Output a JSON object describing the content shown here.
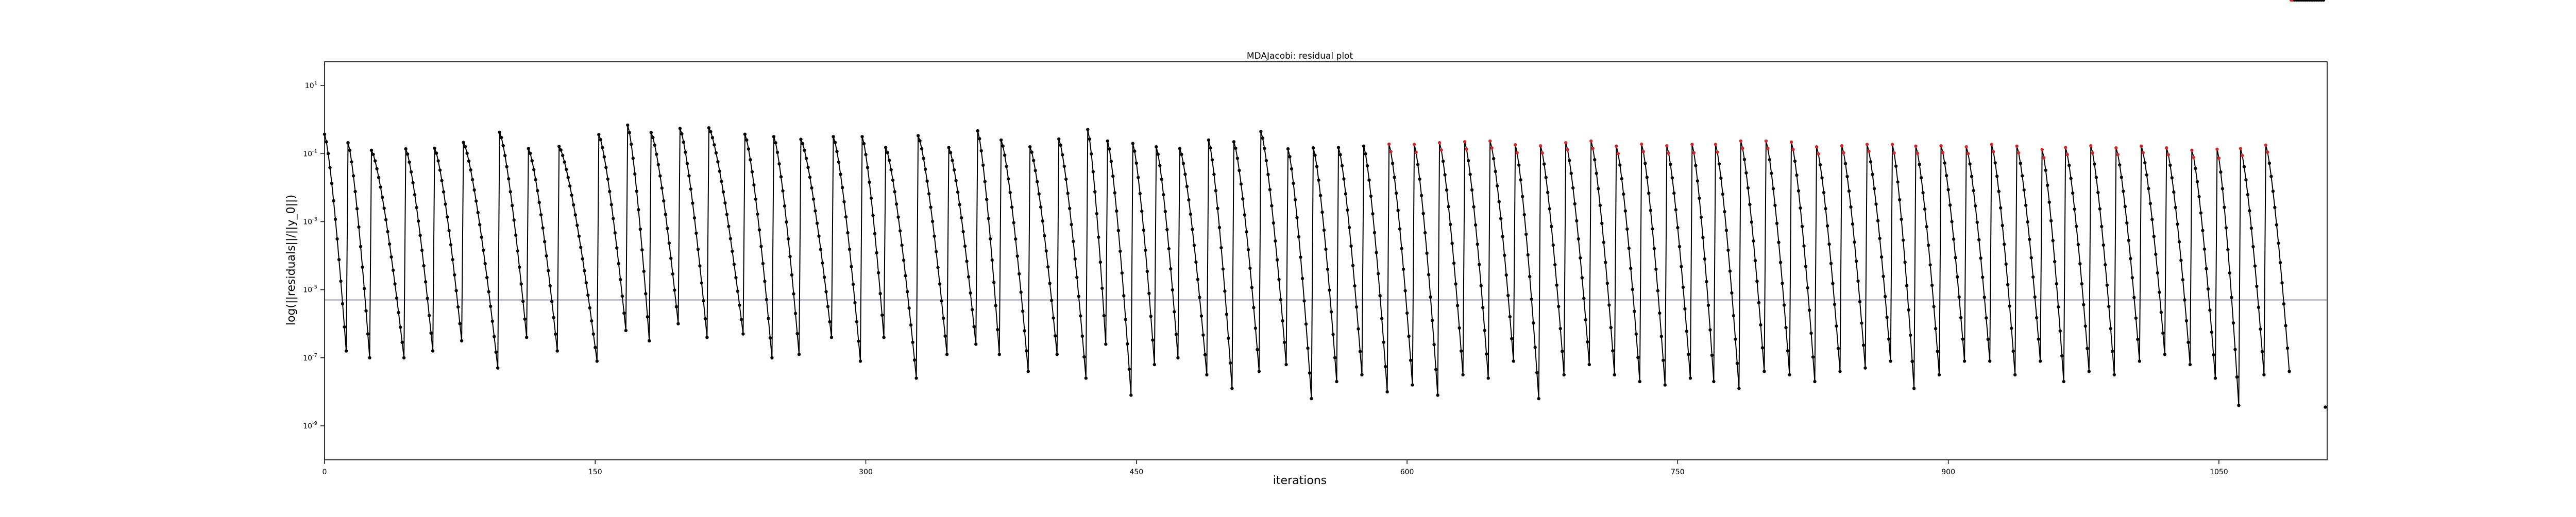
{
  "chart_data": {
    "type": "line",
    "title": "MDAJacobi: residual plot",
    "xlabel": "iterations",
    "ylabel": "log(||residuals||/||y_0||)",
    "xlim": [
      0,
      1110
    ],
    "ylim_exponent": [
      -10,
      1.7
    ],
    "yscale": "log",
    "x_ticks": [
      0,
      150,
      300,
      450,
      600,
      750,
      900,
      1050
    ],
    "x_tick_labels": [
      "0",
      "150",
      "300",
      "450",
      "600",
      "750",
      "900",
      "1050"
    ],
    "y_ticks_exponent": [
      1,
      -1,
      -3,
      -5,
      -7,
      -9
    ],
    "y_tick_labels": [
      "10^1",
      "10^-1",
      "10^-3",
      "10^-5",
      "10^-7",
      "10^-9"
    ],
    "tolerance_line_exponent": -5.3,
    "grid": false,
    "legend": "none",
    "line_color": "#000000",
    "marker_color": "#000000",
    "highlight_marker_color": "#d62728",
    "tolerance_color": "#8c8cb4",
    "series": [
      {
        "cycle_starts": [
          0,
          13,
          26,
          45,
          61,
          77,
          97,
          113,
          130,
          152,
          168,
          181,
          197,
          213,
          233,
          249,
          264,
          282,
          298,
          311,
          329,
          346,
          362,
          375,
          391,
          407,
          423,
          434,
          448,
          461,
          474,
          490,
          504,
          519,
          534,
          548,
          562,
          576,
          590,
          604,
          618,
          632,
          646,
          660,
          674,
          688,
          702,
          716,
          730,
          744,
          758,
          771,
          785,
          799,
          813,
          827,
          841,
          855,
          869,
          882,
          896,
          910,
          924,
          938,
          952,
          965,
          979,
          993,
          1007,
          1021,
          1035,
          1049,
          1062,
          1076,
          1090
        ],
        "cycle_peaks_exponent": [
          -0.43,
          -0.68,
          -0.9,
          -0.86,
          -0.84,
          -0.67,
          -0.37,
          -0.85,
          -0.79,
          -0.44,
          -0.16,
          -0.38,
          -0.26,
          -0.24,
          -0.43,
          -0.5,
          -0.58,
          -0.5,
          -0.5,
          -0.82,
          -0.47,
          -0.82,
          -0.33,
          -0.6,
          -0.8,
          -0.57,
          -0.29,
          -0.63,
          -0.7,
          -0.8,
          -0.85,
          -0.6,
          -0.65,
          -0.35,
          -0.86,
          -0.83,
          -0.82,
          -0.78,
          -0.72,
          -0.73,
          -0.68,
          -0.65,
          -0.63,
          -0.74,
          -0.77,
          -0.68,
          -0.63,
          -0.78,
          -0.72,
          -0.77,
          -0.73,
          -0.73,
          -0.63,
          -0.63,
          -0.66,
          -0.8,
          -0.77,
          -0.73,
          -0.73,
          -0.78,
          -0.77,
          -0.8,
          -0.73,
          -0.78,
          -0.88,
          -0.82,
          -0.77,
          -0.83,
          -0.78,
          -0.83,
          -0.9,
          -0.87,
          -0.85,
          -0.75
        ],
        "cycle_troughs_exponent": [
          -6.8,
          -7.0,
          -7.0,
          -6.8,
          -6.5,
          -7.3,
          -6.4,
          -6.8,
          -7.1,
          -6.2,
          -6.5,
          -6.0,
          -6.4,
          -6.3,
          -7.0,
          -6.9,
          -6.4,
          -7.1,
          -6.4,
          -7.6,
          -6.9,
          -6.6,
          -6.9,
          -7.4,
          -6.9,
          -7.6,
          -6.6,
          -8.1,
          -7.2,
          -7.0,
          -7.5,
          -7.9,
          -7.4,
          -7.2,
          -8.2,
          -7.7,
          -7.5,
          -8.0,
          -7.8,
          -8.1,
          -7.5,
          -7.6,
          -7.1,
          -8.2,
          -7.5,
          -7.2,
          -7.5,
          -7.7,
          -7.8,
          -7.6,
          -7.7,
          -7.9,
          -7.4,
          -7.5,
          -7.7,
          -7.4,
          -7.3,
          -7.1,
          -7.9,
          -7.5,
          -7.1,
          -7.1,
          -7.5,
          -7.1,
          -7.7,
          -7.4,
          -7.5,
          -7.1,
          -6.9,
          -7.2,
          -7.6,
          -8.4,
          -7.5,
          -7.4
        ],
        "final_value_exponent": -8.45
      }
    ]
  }
}
